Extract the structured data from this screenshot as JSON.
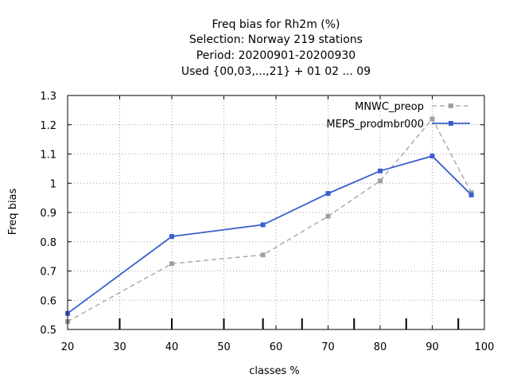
{
  "chart_data": {
    "type": "line",
    "title_lines": [
      "Freq bias  for Rh2m (%)",
      "Selection: Norway    219 stations",
      "Period: 20200901-20200930",
      "Used {00,03,...,21} + 01 02 ... 09"
    ],
    "xlabel": "classes %",
    "ylabel": "Freq bias",
    "xlim": [
      20,
      100
    ],
    "ylim": [
      0.5,
      1.3
    ],
    "xticks": [
      20,
      30,
      40,
      50,
      60,
      70,
      80,
      90,
      100
    ],
    "yticks": [
      0.5,
      0.6,
      0.7,
      0.8,
      0.9,
      1.0,
      1.1,
      1.2,
      1.3
    ],
    "xtick_labels": [
      "20",
      "30",
      "40",
      "50",
      "60",
      "70",
      "80",
      "90",
      "100"
    ],
    "ytick_labels": [
      "0.5",
      "0.6",
      "0.7",
      "0.8",
      "0.9",
      "1",
      "1.1",
      "1.2",
      "1.3"
    ],
    "class_marks": [
      30,
      40,
      50,
      57.5,
      65,
      75,
      85,
      95
    ],
    "grid": true,
    "legend_position": "top-right",
    "series": [
      {
        "name": "MNWC_preop",
        "color": "#a0a0a0",
        "dashed": true,
        "x": [
          20,
          40,
          57.5,
          70,
          80,
          90,
          97.5
        ],
        "y": [
          0.527,
          0.725,
          0.755,
          0.887,
          1.008,
          1.22,
          0.968
        ]
      },
      {
        "name": "MEPS_prodmbr000",
        "color": "#3a5fcd",
        "dashed": false,
        "x": [
          20,
          40,
          57.5,
          70,
          80,
          90,
          97.5
        ],
        "y": [
          0.555,
          0.818,
          0.858,
          0.965,
          1.042,
          1.093,
          0.96
        ]
      }
    ]
  }
}
